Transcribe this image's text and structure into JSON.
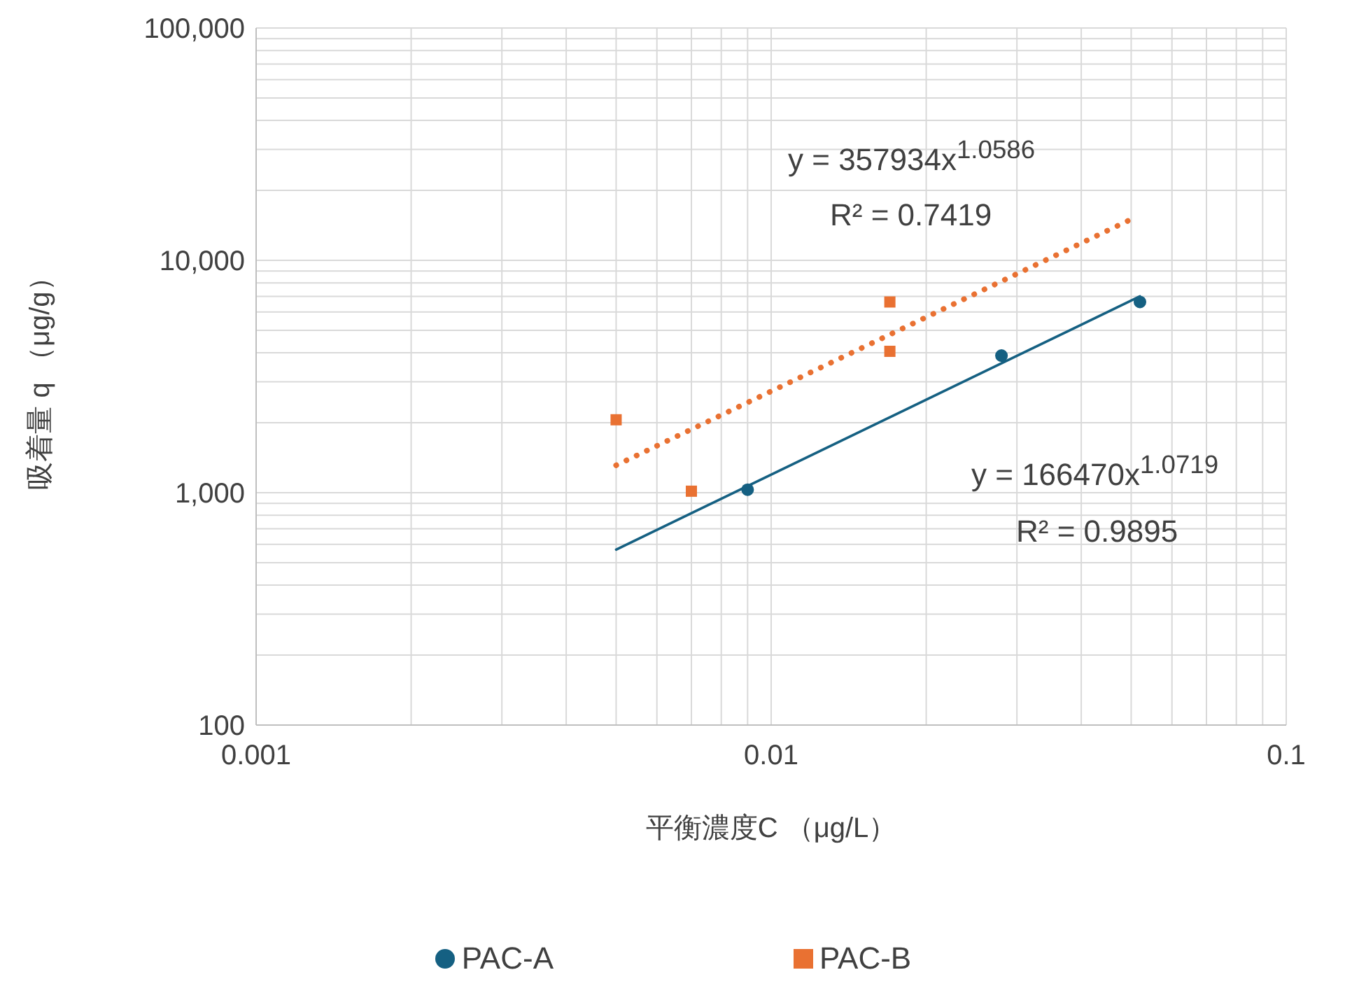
{
  "chart_data": {
    "type": "scatter",
    "xlabel": "平衡濃度C （μg/L）",
    "ylabel": "吸着量 q （μg/g）",
    "log": "xy",
    "grid": true,
    "legend": "bottom",
    "xlim": [
      0.001,
      0.1
    ],
    "ylim": [
      100,
      100000
    ],
    "xticks": [
      0.001,
      {
        "value": 0.002,
        "label": null
      },
      {
        "value": 0.003,
        "label": null
      },
      {
        "value": 0.004,
        "label": null
      },
      {
        "value": 0.005,
        "label": null
      },
      {
        "value": 0.006,
        "label": null
      },
      {
        "value": 0.007,
        "label": null
      },
      {
        "value": 0.008,
        "label": null
      },
      {
        "value": 0.009,
        "label": null
      },
      0.01,
      {
        "value": 0.02,
        "label": null
      },
      {
        "value": 0.03,
        "label": null
      },
      {
        "value": 0.04,
        "label": null
      },
      {
        "value": 0.05,
        "label": null
      },
      {
        "value": 0.06,
        "label": null
      },
      {
        "value": 0.07,
        "label": null
      },
      {
        "value": 0.08,
        "label": null
      },
      {
        "value": 0.09,
        "label": null
      },
      0.1
    ],
    "yticks": [
      100,
      {
        "value": 200,
        "label": null
      },
      {
        "value": 300,
        "label": null
      },
      {
        "value": 400,
        "label": null
      },
      {
        "value": 500,
        "label": null
      },
      {
        "value": 600,
        "label": null
      },
      {
        "value": 700,
        "label": null
      },
      {
        "value": 800,
        "label": null
      },
      {
        "value": 900,
        "label": null
      },
      {
        "value": 1000,
        "label": "1,000"
      },
      {
        "value": 2000,
        "label": null
      },
      {
        "value": 3000,
        "label": null
      },
      {
        "value": 4000,
        "label": null
      },
      {
        "value": 5000,
        "label": null
      },
      {
        "value": 6000,
        "label": null
      },
      {
        "value": 7000,
        "label": null
      },
      {
        "value": 8000,
        "label": null
      },
      {
        "value": 9000,
        "label": null
      },
      {
        "value": 10000,
        "label": "10,000"
      },
      {
        "value": 20000,
        "label": null
      },
      {
        "value": 30000,
        "label": null
      },
      {
        "value": 40000,
        "label": null
      },
      {
        "value": 50000,
        "label": null
      },
      {
        "value": 60000,
        "label": null
      },
      {
        "value": 70000,
        "label": null
      },
      {
        "value": 80000,
        "label": null
      },
      {
        "value": 90000,
        "label": null
      },
      {
        "value": 100000,
        "label": "100,000"
      }
    ],
    "series": [
      {
        "name": "PAC-A",
        "type": "scatter",
        "marker": "circle",
        "color": "#156082",
        "x": [
          0.009,
          0.028,
          0.052
        ],
        "values": [
          1030,
          3890,
          6620
        ]
      },
      {
        "name": "PAC-B",
        "type": "scatter",
        "marker": "square",
        "color": "#e97132",
        "x": [
          0.005,
          0.007,
          0.017,
          0.017
        ],
        "values": [
          2060,
          1015,
          6620,
          4060
        ]
      },
      {
        "type": "line",
        "line_style": "solid",
        "marker": "none",
        "color": "#156082",
        "x": [
          0.005,
          0.052
        ],
        "values": [
          569,
          7000
        ]
      },
      {
        "type": "line",
        "line_style": "dotted",
        "marker": "none",
        "color": "#e97132",
        "x": [
          0.005,
          0.05
        ],
        "values": [
          1312,
          15020
        ]
      }
    ],
    "annotations": [
      "y = 357934x$^{1.0586}$",
      "R² = 0.7419",
      "y = 166470x$^{1.0719}$",
      "R² = 0.9895"
    ]
  }
}
